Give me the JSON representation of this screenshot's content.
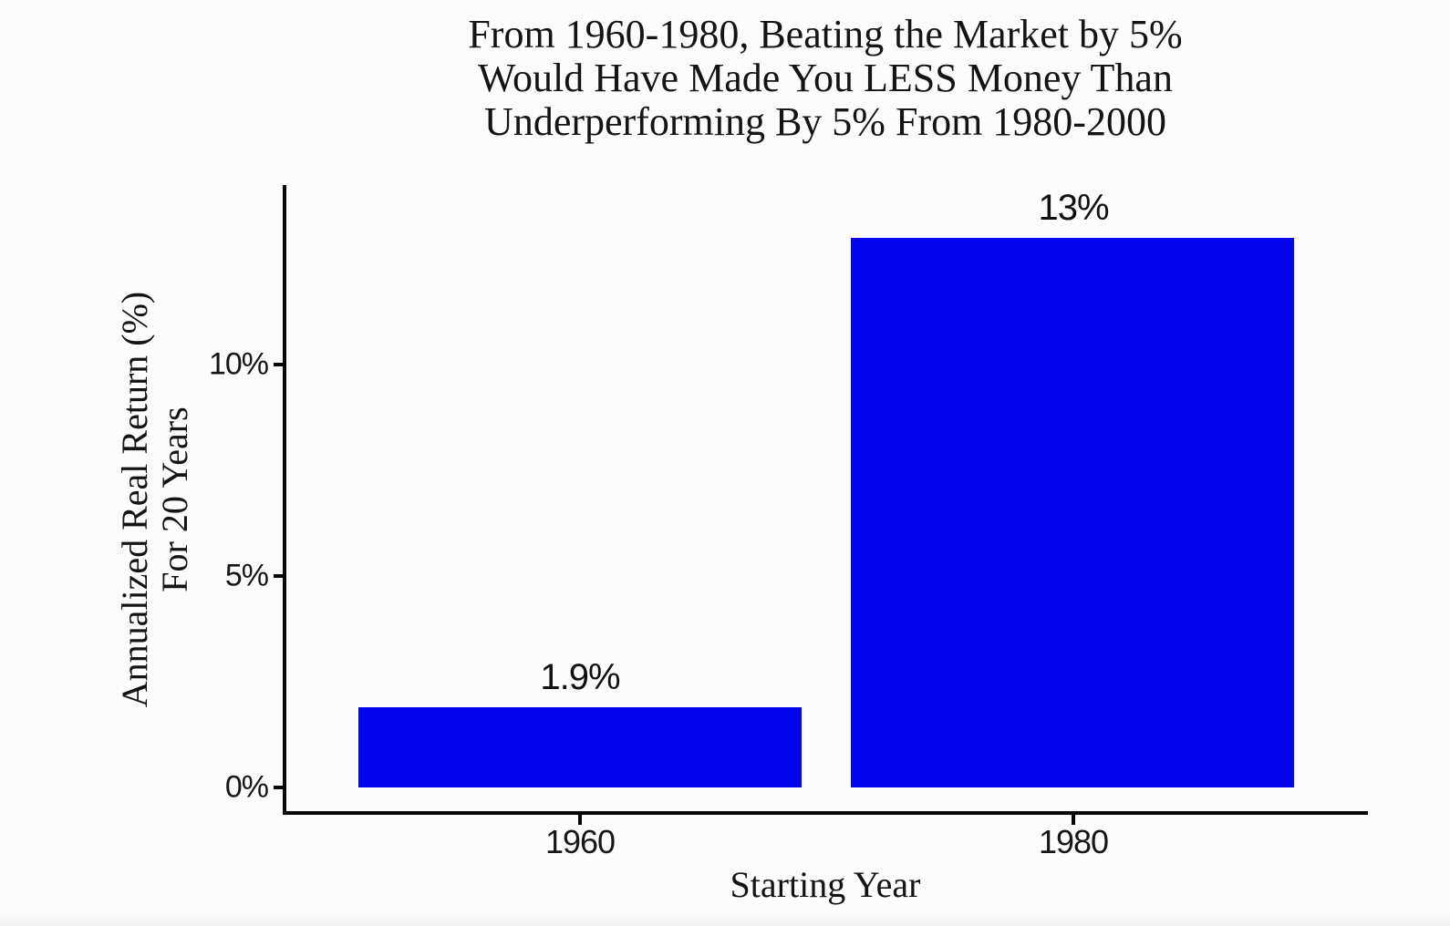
{
  "chart_data": {
    "type": "bar",
    "title_lines": [
      "From 1960-1980, Beating the Market by 5%",
      "Would Have Made You LESS Money Than",
      "Underperforming By 5% From 1980-2000"
    ],
    "categories": [
      "1960",
      "1980"
    ],
    "values": [
      1.9,
      13
    ],
    "bar_labels": [
      "1.9%",
      "13%"
    ],
    "xlabel": "Starting Year",
    "ylabel_lines": [
      "Annualized Real Return (%)",
      "For 20 Years"
    ],
    "y_ticks": [
      {
        "value": 0,
        "label": "0%"
      },
      {
        "value": 5,
        "label": "5%"
      },
      {
        "value": 10,
        "label": "10%"
      }
    ],
    "ylim": [
      0,
      13.8
    ],
    "grid": false,
    "legend": false,
    "bar_color": "#0505ec",
    "axis_color": "#070707",
    "text_color": "#141414",
    "background_color": "#fcfcfc"
  }
}
